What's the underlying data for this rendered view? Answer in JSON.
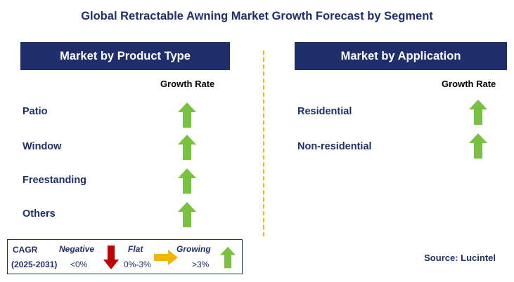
{
  "title": "Global Retractable Awning Market Growth Forecast by Segment",
  "left_panel": {
    "header": "Market by Product Type",
    "growth_label": "Growth Rate",
    "items": [
      {
        "label": "Patio",
        "trend": "growing"
      },
      {
        "label": "Window",
        "trend": "growing"
      },
      {
        "label": "Freestanding",
        "trend": "growing"
      },
      {
        "label": "Others",
        "trend": "growing"
      }
    ]
  },
  "right_panel": {
    "header": "Market by Application",
    "growth_label": "Growth Rate",
    "items": [
      {
        "label": "Residential",
        "trend": "growing"
      },
      {
        "label": "Non-residential",
        "trend": "growing"
      }
    ]
  },
  "legend": {
    "cagr_label": "CAGR",
    "period": "(2025-2031)",
    "negative_label": "Negative",
    "negative_range": "<0%",
    "flat_label": "Flat",
    "flat_range": "0%-3%",
    "growing_label": "Growing",
    "growing_range": ">3%"
  },
  "source": "Source: Lucintel",
  "colors": {
    "header_bg": "#1f2f6b",
    "text_navy": "#1f2f6b",
    "growing_arrow": "#7ac142",
    "negative_arrow": "#c00000",
    "flat_arrow": "#f5b400",
    "divider": "#f5b400"
  }
}
